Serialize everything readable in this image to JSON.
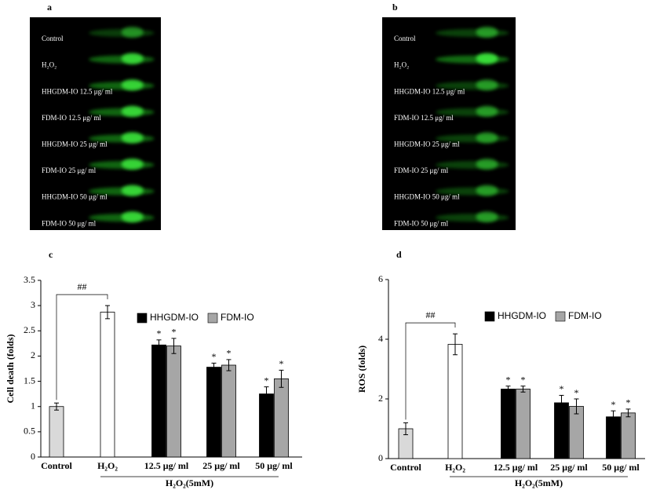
{
  "panels": [
    {
      "label": "a",
      "rows": [
        "Control",
        "H₂O₂",
        "HHGDM-IO 12.5 μg/ ml",
        "FDM-IO 12.5 μg/ ml",
        "HHGDM-IO 25 μg/ ml",
        "FDM-IO 25 μg/ ml",
        "HHGDM-IO 50 μg/ ml",
        "FDM-IO 50 μg/ ml"
      ]
    },
    {
      "label": "b",
      "rows": [
        "Control",
        "H₂O₂",
        "HHGDM-IO 12.5 μg/ ml",
        "FDM-IO 12.5 μg/ ml",
        "HHGDM-IO 25 μg/ ml",
        "FDM-IO 25 μg/ ml",
        "HHGDM-IO 50 μg/ ml",
        "FDM-IO 50 μg/ ml"
      ]
    }
  ],
  "chart_data": [
    {
      "type": "bar",
      "panel": "c",
      "ylabel": "Cell death (folds)",
      "group_label": "H₂O₂(5mM)",
      "categories": [
        "Control",
        "H₂O₂",
        "12.5 μg/ ml",
        "25 μg/ ml",
        "50 μg/ ml"
      ],
      "values": [
        1.0,
        2.87,
        null,
        null,
        null
      ],
      "errors": [
        0.07,
        0.13,
        null,
        null,
        null
      ],
      "colors": [
        "#d9d9d9",
        "#ffffff",
        null,
        null,
        null
      ],
      "annotation": "##",
      "series": [
        {
          "name": "HHGDM-IO",
          "color": "#000000",
          "values": [
            null,
            null,
            2.22,
            1.78,
            1.25
          ],
          "errors": [
            null,
            null,
            0.1,
            0.08,
            0.14
          ],
          "markers": [
            null,
            null,
            "*",
            "*",
            "*"
          ]
        },
        {
          "name": "FDM-IO",
          "color": "#a6a6a6",
          "values": [
            null,
            null,
            2.2,
            1.82,
            1.55
          ],
          "errors": [
            null,
            null,
            0.15,
            0.11,
            0.17
          ],
          "markers": [
            null,
            null,
            "*",
            "*",
            "*"
          ]
        }
      ],
      "ylim": [
        0,
        3.5
      ],
      "yticks": [
        0,
        0.5,
        1,
        1.5,
        2,
        2.5,
        3,
        3.5
      ]
    },
    {
      "type": "bar",
      "panel": "d",
      "ylabel": "ROS (folds)",
      "group_label": "H₂O₂(5mM)",
      "categories": [
        "Control",
        "H₂O₂",
        "12.5 μg/ ml",
        "25 μg/ ml",
        "50 μg/ ml"
      ],
      "values": [
        1.0,
        3.83,
        null,
        null,
        null
      ],
      "errors": [
        0.2,
        0.35,
        null,
        null,
        null
      ],
      "colors": [
        "#d9d9d9",
        "#ffffff",
        null,
        null,
        null
      ],
      "annotation": "##",
      "series": [
        {
          "name": "HHGDM-IO",
          "color": "#000000",
          "values": [
            null,
            null,
            2.33,
            1.87,
            1.4
          ],
          "errors": [
            null,
            null,
            0.1,
            0.25,
            0.2
          ],
          "markers": [
            null,
            null,
            "*",
            "*",
            "*"
          ]
        },
        {
          "name": "FDM-IO",
          "color": "#a6a6a6",
          "values": [
            null,
            null,
            2.33,
            1.75,
            1.53
          ],
          "errors": [
            null,
            null,
            0.1,
            0.25,
            0.13
          ],
          "markers": [
            null,
            null,
            "*",
            "*",
            "*"
          ]
        }
      ],
      "ylim": [
        0,
        6
      ],
      "yticks": [
        0,
        2,
        4,
        6
      ]
    }
  ]
}
